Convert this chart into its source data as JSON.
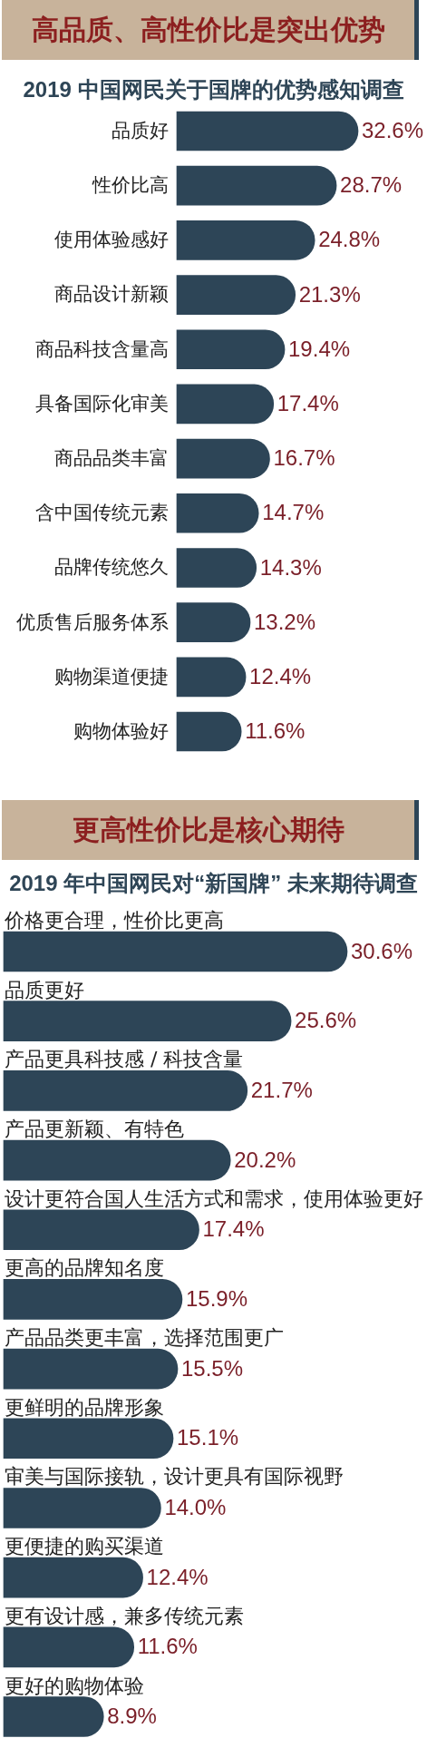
{
  "chart_data": [
    {
      "type": "bar",
      "orientation": "horizontal",
      "title": "高品质、高性价比是突出优势",
      "subtitle": "2019 中国网民关于国牌的优势感知调查",
      "tick_labels": "y",
      "color": "#2d4557",
      "categories": [
        "品质好",
        "性价比高",
        "使用体验感好",
        "商品设计新颖",
        "商品科技含量高",
        "具备国际化审美",
        "商品品类丰富",
        "含中国传统元素",
        "品牌传统悠久",
        "优质售后服务体系",
        "购物渠道便捷",
        "购物体验好"
      ],
      "values": [
        32.6,
        28.7,
        24.8,
        21.3,
        19.4,
        17.4,
        16.7,
        14.7,
        14.3,
        13.2,
        12.4,
        11.6
      ],
      "value_labels": [
        "32.6%",
        "28.7%",
        "24.8%",
        "21.3%",
        "19.4%",
        "17.4%",
        "16.7%",
        "14.7%",
        "14.3%",
        "13.2%",
        "12.4%",
        "11.6%"
      ]
    },
    {
      "type": "bar",
      "orientation": "horizontal",
      "title": "更高性价比是核心期待",
      "subtitle": "2019 年中国网民对“新国牌” 未来期待调查",
      "tick_labels": "y",
      "color": "#2d4557",
      "categories": [
        "价格更合理，性价比更高",
        "品质更好",
        "产品更具科技感 / 科技含量",
        "产品更新颖、有特色",
        "设计更符合国人生活方式和需求，使用体验更好",
        "更高的品牌知名度",
        "产品品类更丰富，选择范围更广",
        "更鲜明的品牌形象",
        "审美与国际接轨，设计更具有国际视野",
        "更便捷的购买渠道",
        "更有设计感，兼多传统元素",
        "更好的购物体验"
      ],
      "values": [
        30.6,
        25.6,
        21.7,
        20.2,
        17.4,
        15.9,
        15.5,
        15.1,
        14.0,
        12.4,
        11.6,
        8.9
      ],
      "value_labels": [
        "30.6%",
        "25.6%",
        "21.7%",
        "20.2%",
        "17.4%",
        "15.9%",
        "15.5%",
        "15.1%",
        "14.0%",
        "12.4%",
        "11.6%",
        "8.9%"
      ]
    }
  ]
}
